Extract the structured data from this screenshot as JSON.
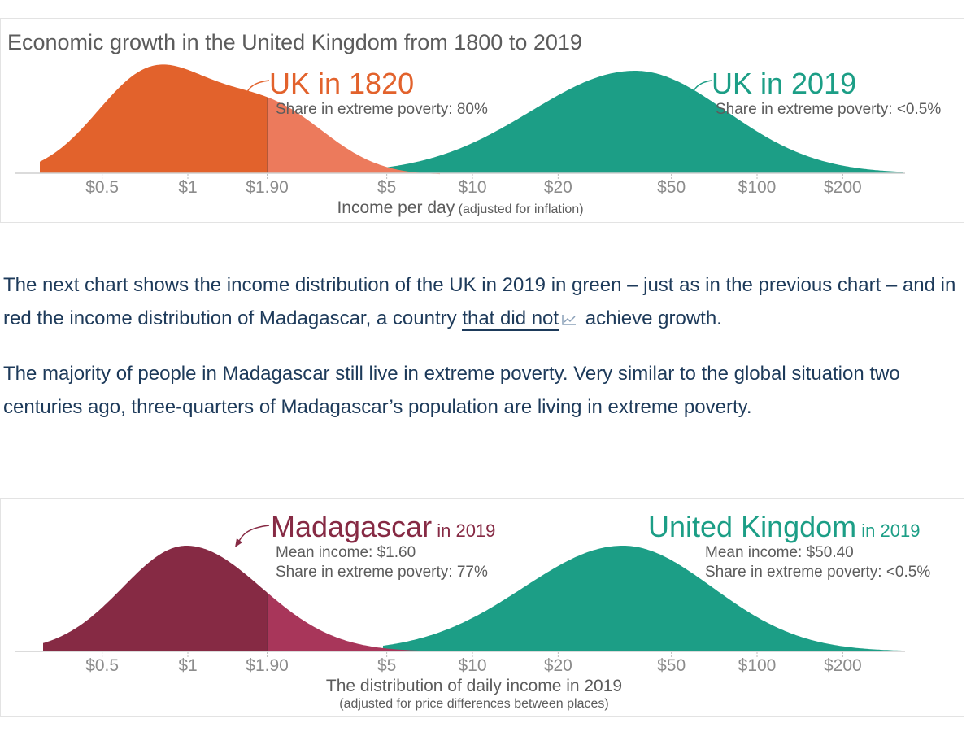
{
  "chart_data": [
    {
      "type": "area",
      "title": "Economic growth in the United Kingdom from 1800 to 2019",
      "x_scale": "log",
      "tick_labels": [
        "$0.5",
        "$1",
        "$1.90",
        "$5",
        "$10",
        "$20",
        "$50",
        "$100",
        "$200"
      ],
      "tick_values": [
        0.5,
        1,
        1.9,
        5,
        10,
        20,
        50,
        100,
        200
      ],
      "xlabel": "Income per day",
      "xlabel_note": "(adjusted for inflation)",
      "poverty_line": 1.9,
      "series": [
        {
          "name": "UK in 1820",
          "year_suffix": "",
          "details": [
            "Share in extreme poverty: 80%"
          ],
          "color": "#e2622c",
          "color_above_line": "#ec7a5c",
          "approx_mode_income": 0.75,
          "share_extreme_poverty": 80
        },
        {
          "name": "UK in 2019",
          "year_suffix": "",
          "details": [
            "Share in extreme poverty: <0.5%"
          ],
          "color": "#1c9e86",
          "approx_mode_income": 38,
          "share_extreme_poverty": 0.5
        }
      ]
    },
    {
      "type": "area",
      "title": "",
      "x_scale": "log",
      "tick_labels": [
        "$0.5",
        "$1",
        "$1.90",
        "$5",
        "$10",
        "$20",
        "$50",
        "$100",
        "$200"
      ],
      "tick_values": [
        0.5,
        1,
        1.9,
        5,
        10,
        20,
        50,
        100,
        200
      ],
      "xlabel": "The distribution of daily income in 2019",
      "xlabel_note": "(adjusted for price differences between places)",
      "poverty_line": 1.9,
      "series": [
        {
          "name": "Madagascar",
          "year_suffix": "in 2019",
          "details": [
            "Mean income: $1.60",
            "Share in extreme poverty: 77%"
          ],
          "color": "#862a44",
          "color_above_line": "#a8365a",
          "mean_income": 1.6,
          "share_extreme_poverty": 77
        },
        {
          "name": "United Kingdom",
          "year_suffix": "in 2019",
          "details": [
            "Mean income: $50.40",
            "Share in extreme poverty: <0.5%"
          ],
          "color": "#1c9e86",
          "mean_income": 50.4,
          "share_extreme_poverty": 0.5
        }
      ]
    }
  ],
  "article": {
    "paragraph1_before": "The next chart shows the income distribution of the UK in 2019 in green – just as in the previous chart – and in red the income distribution of Madagascar, a country ",
    "paragraph1_link": "that did not",
    "paragraph1_link_icon": "line-chart-icon",
    "paragraph1_after": " achieve growth.",
    "paragraph2": "The majority of people in Madagascar still live in extreme poverty. Very similar to the global situation two centuries ago, three-quarters of Madagascar’s population are living in extreme poverty."
  }
}
